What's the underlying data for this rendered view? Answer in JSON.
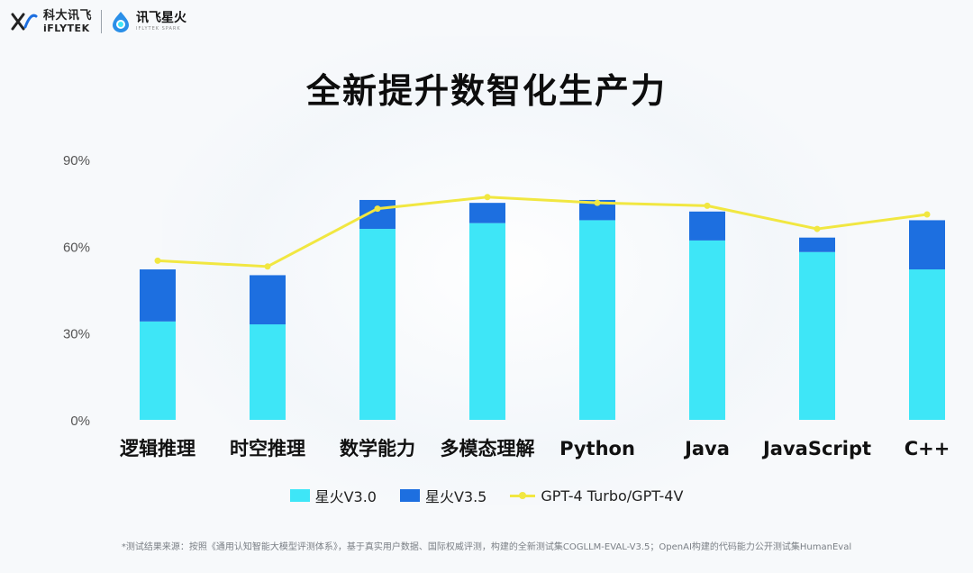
{
  "header": {
    "company_cn": "科大讯飞",
    "company_en": "iFLYTEK",
    "product_cn": "讯飞星火",
    "product_en": "IFLYTEK SPARK"
  },
  "title": "全新提升数智化生产力",
  "colors": {
    "v30": "#3ee6f7",
    "v35": "#1d6fe0",
    "gpt4": "#f1e741",
    "axis_text": "#555555"
  },
  "chart_data": {
    "type": "bar",
    "stacked": true,
    "categories": [
      "逻辑推理",
      "时空推理",
      "数学能力",
      "多模态理解",
      "Python",
      "Java",
      "JavaScript",
      "C++"
    ],
    "series": [
      {
        "name": "星火V3.0",
        "type": "bar",
        "values": [
          34,
          33,
          66,
          68,
          69,
          62,
          58,
          52
        ]
      },
      {
        "name": "星火V3.5",
        "type": "bar",
        "values": [
          18,
          17,
          10,
          7,
          7,
          10,
          5,
          17
        ]
      },
      {
        "name": "GPT-4 Turbo/GPT-4V",
        "type": "line",
        "values": [
          55,
          53,
          73,
          77,
          75,
          74,
          66,
          71
        ]
      }
    ],
    "yticks": [
      "0%",
      "30%",
      "60%",
      "90%"
    ],
    "ylim": [
      0,
      90
    ],
    "grid": false,
    "legend_position": "bottom"
  },
  "footnote": "*测试结果来源：按照《通用认知智能大模型评测体系》，基于真实用户数据、国际权威评测，构建的全新测试集COGLLM-EVAL-V3.5；OpenAI构建的代码能力公开测试集HumanEval"
}
